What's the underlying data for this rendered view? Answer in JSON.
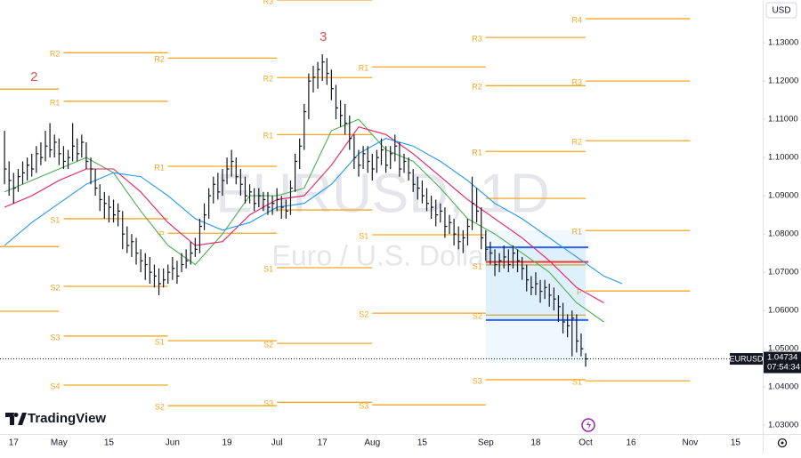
{
  "chart_data": {
    "type": "ohlc",
    "symbol": "EURUSD",
    "watermark_title": "EURUSD, 1D",
    "watermark_subtitle": "Euro / U.S. Dollar",
    "currency": "USD",
    "brand": "TradingView",
    "bar_color": "#131722",
    "xlim": [
      -1,
      167
    ],
    "ylim": [
      1.0277,
      1.1412
    ],
    "xticks": [
      {
        "value": 2,
        "label": "17"
      },
      {
        "value": 12,
        "label": "May"
      },
      {
        "value": 23,
        "label": "15"
      },
      {
        "value": 37,
        "label": "Jun"
      },
      {
        "value": 49,
        "label": "19"
      },
      {
        "value": 60,
        "label": "Jul"
      },
      {
        "value": 70,
        "label": "17"
      },
      {
        "value": 81,
        "label": "Aug"
      },
      {
        "value": 92,
        "label": "15"
      },
      {
        "value": 106,
        "label": "Sep"
      },
      {
        "value": 117,
        "label": "18"
      },
      {
        "value": 128,
        "label": "Oct"
      },
      {
        "value": 138,
        "label": "16"
      },
      {
        "value": 151,
        "label": "Nov"
      },
      {
        "value": 161,
        "label": "15"
      }
    ],
    "yticks": [
      {
        "value": 1.03,
        "label": "1.03000"
      },
      {
        "value": 1.04,
        "label": "1.04000"
      },
      {
        "value": 1.05,
        "label": "1.05000"
      },
      {
        "value": 1.06,
        "label": "1.06000"
      },
      {
        "value": 1.07,
        "label": "1.07000"
      },
      {
        "value": 1.08,
        "label": "1.08000"
      },
      {
        "value": 1.09,
        "label": "1.09000"
      },
      {
        "value": 1.1,
        "label": "1.10000"
      },
      {
        "value": 1.11,
        "label": "1.11000"
      },
      {
        "value": 1.12,
        "label": "1.12000"
      },
      {
        "value": 1.13,
        "label": "1.13000"
      }
    ],
    "high": [
      1.107,
      1.099,
      1.096,
      1.097,
      1.099,
      1.1,
      1.101,
      1.103,
      1.104,
      1.107,
      1.109,
      1.106,
      1.105,
      1.103,
      1.102,
      1.109,
      1.105,
      1.106,
      1.104,
      1.1,
      1.097,
      1.093,
      1.091,
      1.09,
      1.089,
      1.088,
      1.086,
      1.082,
      1.08,
      1.079,
      1.076,
      1.075,
      1.074,
      1.072,
      1.071,
      1.071,
      1.072,
      1.074,
      1.073,
      1.075,
      1.076,
      1.078,
      1.079,
      1.084,
      1.088,
      1.092,
      1.095,
      1.096,
      1.097,
      1.1,
      1.102,
      1.1,
      1.097,
      1.095,
      1.093,
      1.092,
      1.092,
      1.091,
      1.091,
      1.09,
      1.092,
      1.09,
      1.089,
      1.094,
      1.101,
      1.105,
      1.114,
      1.122,
      1.124,
      1.125,
      1.127,
      1.126,
      1.123,
      1.119,
      1.115,
      1.114,
      1.111,
      1.106,
      1.102,
      1.103,
      1.103,
      1.101,
      1.102,
      1.105,
      1.103,
      1.103,
      1.106,
      1.104,
      1.101,
      1.1,
      1.097,
      1.095,
      1.094,
      1.092,
      1.09,
      1.089,
      1.088,
      1.087,
      1.085,
      1.084,
      1.082,
      1.081,
      1.084,
      1.095,
      1.092,
      1.087,
      1.081,
      1.078,
      1.076,
      1.075,
      1.077,
      1.076,
      1.077,
      1.076,
      1.074,
      1.072,
      1.069,
      1.07,
      1.068,
      1.068,
      1.067,
      1.066,
      1.064,
      1.062,
      1.059,
      1.06,
      1.059,
      1.054,
      1.0488
    ],
    "low": [
      1.093,
      1.09,
      1.088,
      1.091,
      1.093,
      1.094,
      1.095,
      1.096,
      1.098,
      1.099,
      1.1,
      1.1,
      1.098,
      1.097,
      1.097,
      1.099,
      1.099,
      1.1,
      1.097,
      1.093,
      1.09,
      1.086,
      1.084,
      1.083,
      1.083,
      1.082,
      1.076,
      1.075,
      1.074,
      1.072,
      1.07,
      1.068,
      1.067,
      1.066,
      1.064,
      1.066,
      1.067,
      1.068,
      1.067,
      1.07,
      1.071,
      1.072,
      1.074,
      1.075,
      1.081,
      1.084,
      1.088,
      1.089,
      1.09,
      1.093,
      1.095,
      1.093,
      1.09,
      1.088,
      1.088,
      1.086,
      1.087,
      1.086,
      1.085,
      1.085,
      1.086,
      1.084,
      1.084,
      1.085,
      1.091,
      1.097,
      1.102,
      1.11,
      1.117,
      1.118,
      1.12,
      1.119,
      1.115,
      1.11,
      1.108,
      1.106,
      1.102,
      1.097,
      1.095,
      1.097,
      1.096,
      1.094,
      1.096,
      1.098,
      1.096,
      1.097,
      1.099,
      1.095,
      1.096,
      1.094,
      1.091,
      1.089,
      1.088,
      1.086,
      1.084,
      1.082,
      1.083,
      1.079,
      1.08,
      1.077,
      1.076,
      1.075,
      1.077,
      1.081,
      1.083,
      1.076,
      1.073,
      1.072,
      1.069,
      1.07,
      1.071,
      1.07,
      1.071,
      1.07,
      1.068,
      1.065,
      1.064,
      1.064,
      1.062,
      1.063,
      1.061,
      1.06,
      1.057,
      1.054,
      1.053,
      1.048,
      1.049,
      1.048,
      1.0453
    ],
    "close": [
      1.097,
      1.094,
      1.092,
      1.095,
      1.096,
      1.098,
      1.097,
      1.101,
      1.1,
      1.103,
      1.102,
      1.104,
      1.101,
      1.099,
      1.1,
      1.103,
      1.101,
      1.104,
      1.099,
      1.097,
      1.092,
      1.089,
      1.088,
      1.087,
      1.085,
      1.086,
      1.08,
      1.077,
      1.078,
      1.075,
      1.073,
      1.072,
      1.07,
      1.069,
      1.067,
      1.068,
      1.07,
      1.071,
      1.069,
      1.072,
      1.073,
      1.075,
      1.076,
      1.082,
      1.085,
      1.09,
      1.093,
      1.091,
      1.094,
      1.097,
      1.099,
      1.095,
      1.093,
      1.09,
      1.091,
      1.088,
      1.09,
      1.089,
      1.087,
      1.088,
      1.089,
      1.087,
      1.086,
      1.092,
      1.099,
      1.103,
      1.112,
      1.12,
      1.121,
      1.123,
      1.125,
      1.122,
      1.118,
      1.113,
      1.111,
      1.109,
      1.105,
      1.1,
      1.098,
      1.101,
      1.099,
      1.097,
      1.1,
      1.102,
      1.098,
      1.101,
      1.103,
      1.097,
      1.099,
      1.096,
      1.093,
      1.092,
      1.09,
      1.088,
      1.087,
      1.085,
      1.086,
      1.082,
      1.083,
      1.08,
      1.078,
      1.079,
      1.082,
      1.088,
      1.086,
      1.079,
      1.076,
      1.075,
      1.072,
      1.073,
      1.074,
      1.072,
      1.075,
      1.073,
      1.071,
      1.068,
      1.066,
      1.067,
      1.065,
      1.066,
      1.064,
      1.063,
      1.061,
      1.057,
      1.056,
      1.058,
      1.052,
      1.05,
      1.04734
    ],
    "series": [
      {
        "color": "#4caf50",
        "x": [
          0,
          6,
          12,
          18,
          24,
          30,
          36,
          42,
          48,
          54,
          60,
          66,
          72,
          78,
          84,
          90,
          96,
          102,
          108,
          114,
          120,
          126,
          132
        ],
        "values": [
          1.091,
          1.094,
          1.097,
          1.1,
          1.096,
          1.086,
          1.077,
          1.072,
          1.08,
          1.09,
          1.09,
          1.092,
          1.107,
          1.11,
          1.102,
          1.099,
          1.092,
          1.084,
          1.08,
          1.075,
          1.07,
          1.062,
          1.057
        ]
      },
      {
        "color": "#e91e63",
        "x": [
          0,
          6,
          12,
          18,
          24,
          30,
          36,
          42,
          48,
          54,
          60,
          66,
          72,
          78,
          84,
          90,
          96,
          102,
          108,
          114,
          120,
          126,
          132
        ],
        "values": [
          1.087,
          1.09,
          1.094,
          1.097,
          1.097,
          1.091,
          1.083,
          1.077,
          1.078,
          1.085,
          1.089,
          1.09,
          1.098,
          1.108,
          1.106,
          1.101,
          1.095,
          1.089,
          1.084,
          1.079,
          1.073,
          1.066,
          1.062
        ]
      },
      {
        "color": "#2196f3",
        "x": [
          0,
          6,
          12,
          18,
          24,
          30,
          36,
          42,
          48,
          54,
          60,
          66,
          72,
          78,
          84,
          90,
          96,
          102,
          108,
          114,
          120,
          126,
          132,
          136
        ],
        "values": [
          1.077,
          1.083,
          1.088,
          1.093,
          1.096,
          1.095,
          1.09,
          1.084,
          1.081,
          1.083,
          1.087,
          1.088,
          1.093,
          1.101,
          1.105,
          1.103,
          1.099,
          1.094,
          1.088,
          1.084,
          1.079,
          1.074,
          1.069,
          1.067
        ]
      }
    ],
    "pivot_color": "#f5a623",
    "pivots": [
      {
        "value": 1.1179,
        "start": -1,
        "end": 12
      },
      {
        "value": 1.0767,
        "start": -1,
        "end": 12
      },
      {
        "value": 1.0598,
        "start": -1,
        "end": 12
      },
      {
        "label": "R2",
        "value": 1.1274,
        "start": 13,
        "end": 36
      },
      {
        "label": "R1",
        "value": 1.1147,
        "start": 13,
        "end": 36
      },
      {
        "label": "S1",
        "value": 1.084,
        "start": 13,
        "end": 36
      },
      {
        "label": "S2",
        "value": 1.0663,
        "start": 13,
        "end": 36
      },
      {
        "label": "S3",
        "value": 1.0533,
        "start": 13,
        "end": 36
      },
      {
        "label": "S4",
        "value": 1.0405,
        "start": 13,
        "end": 36
      },
      {
        "label": "R2",
        "value": 1.126,
        "start": 36,
        "end": 60
      },
      {
        "label": "R1",
        "value": 1.0977,
        "start": 36,
        "end": 60
      },
      {
        "label": "P",
        "value": 1.0802,
        "start": 36,
        "end": 60
      },
      {
        "label": "S1",
        "value": 1.0521,
        "start": 36,
        "end": 60
      },
      {
        "label": "S2",
        "value": 1.0351,
        "start": 36,
        "end": 60
      },
      {
        "label": "R3",
        "value": 1.1412,
        "start": 60,
        "end": 81
      },
      {
        "label": "R2",
        "value": 1.1209,
        "start": 60,
        "end": 81
      },
      {
        "label": "R1",
        "value": 1.106,
        "start": 60,
        "end": 81
      },
      {
        "value": 1.0863,
        "start": 60,
        "end": 81
      },
      {
        "label": "S1",
        "value": 1.0712,
        "start": 60,
        "end": 81
      },
      {
        "label": "S2",
        "value": 1.0514,
        "start": 60,
        "end": 81
      },
      {
        "label": "S3",
        "value": 1.036,
        "start": 60,
        "end": 81
      },
      {
        "label": "R1",
        "value": 1.1237,
        "start": 81,
        "end": 106
      },
      {
        "label": "S1",
        "value": 1.0798,
        "start": 81,
        "end": 106
      },
      {
        "label": "S2",
        "value": 1.0593,
        "start": 81,
        "end": 106
      },
      {
        "label": "S3",
        "value": 1.0353,
        "start": 81,
        "end": 106
      },
      {
        "label": "R3",
        "value": 1.1314,
        "start": 106,
        "end": 128
      },
      {
        "label": "R2",
        "value": 1.1188,
        "start": 106,
        "end": 128
      },
      {
        "label": "R1",
        "value": 1.1016,
        "start": 106,
        "end": 128
      },
      {
        "value": 1.0893,
        "start": 106,
        "end": 128
      },
      {
        "label": "S1",
        "value": 1.0719,
        "start": 106,
        "end": 128
      },
      {
        "label": "S2",
        "value": 1.0588,
        "start": 106,
        "end": 128
      },
      {
        "label": "S3",
        "value": 1.0419,
        "start": 106,
        "end": 128
      },
      {
        "label": "R4",
        "value": 1.1363,
        "start": 128,
        "end": 151
      },
      {
        "label": "R3",
        "value": 1.12,
        "start": 128,
        "end": 151
      },
      {
        "label": "R2",
        "value": 1.1044,
        "start": 128,
        "end": 151
      },
      {
        "label": "R1",
        "value": 1.0809,
        "start": 128,
        "end": 151
      },
      {
        "label": "P",
        "value": 1.0651,
        "start": 128,
        "end": 151
      },
      {
        "label": "S1",
        "value": 1.0416,
        "start": 128,
        "end": 151
      }
    ],
    "annotations": [
      {
        "text": "2",
        "x": 6.5,
        "y": 1.1209,
        "color": "#e5534b"
      },
      {
        "text": "3",
        "x": 70.2,
        "y": 1.1314,
        "color": "#e5534b"
      }
    ],
    "volume_profile": {
      "start": 106,
      "end": 128,
      "high": 1.081,
      "low": 1.0463,
      "vah": 1.0765,
      "poc": 1.0727,
      "val": 1.0575
    },
    "last_price": 1.04734,
    "countdown": "07:54:34"
  }
}
